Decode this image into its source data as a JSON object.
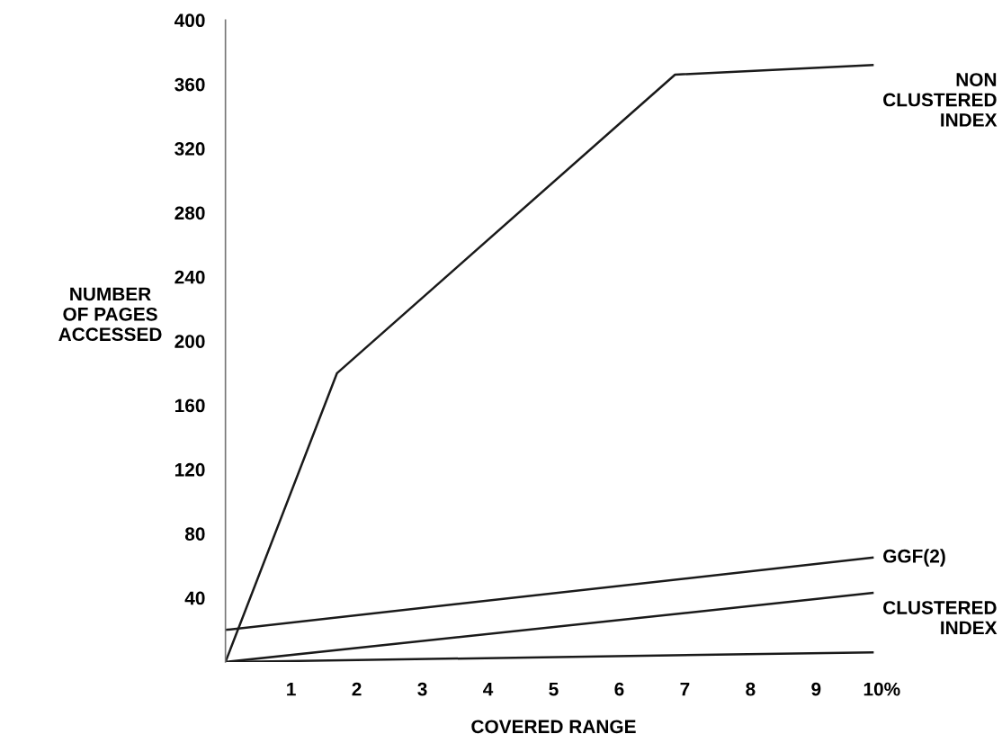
{
  "chart_data": {
    "type": "line",
    "xlabel": "COVERED RANGE",
    "ylabel": "NUMBER\nOF PAGES\nACCESSED",
    "xlim": [
      0,
      10
    ],
    "ylim": [
      0,
      400
    ],
    "xticks": [
      1,
      2,
      3,
      4,
      5,
      6,
      7,
      8,
      9,
      {
        "value": 10,
        "label": "10%"
      }
    ],
    "yticks": [
      40,
      80,
      120,
      160,
      200,
      240,
      280,
      320,
      360,
      400
    ],
    "grid": false,
    "legend": false,
    "marker": "none",
    "line_style": "solid",
    "series": [
      {
        "name": "NON\nCLUSTERED\nINDEX",
        "color": "#1a1a1a",
        "x": [
          0,
          1.7,
          6.85,
          9.86
        ],
        "values": [
          0,
          180,
          366,
          372
        ]
      },
      {
        "name": "GGF(2)",
        "color": "#1a1a1a",
        "x": [
          0,
          9.86
        ],
        "values": [
          20,
          65
        ]
      },
      {
        "name": "CLUSTERED\nINDEX",
        "color": "#1a1a1a",
        "x": [
          0,
          9.86
        ],
        "values": [
          0,
          43
        ]
      },
      {
        "color": "#1a1a1a",
        "x": [
          0,
          9.86
        ],
        "values": [
          0,
          6
        ]
      }
    ]
  }
}
